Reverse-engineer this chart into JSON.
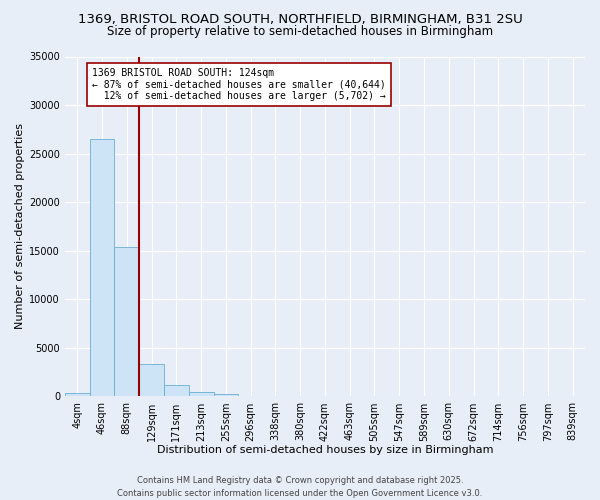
{
  "title_line1": "1369, BRISTOL ROAD SOUTH, NORTHFIELD, BIRMINGHAM, B31 2SU",
  "title_line2": "Size of property relative to semi-detached houses in Birmingham",
  "xlabel": "Distribution of semi-detached houses by size in Birmingham",
  "ylabel": "Number of semi-detached properties",
  "categories": [
    "4sqm",
    "46sqm",
    "88sqm",
    "129sqm",
    "171sqm",
    "213sqm",
    "255sqm",
    "296sqm",
    "338sqm",
    "380sqm",
    "422sqm",
    "463sqm",
    "505sqm",
    "547sqm",
    "589sqm",
    "630sqm",
    "672sqm",
    "714sqm",
    "756sqm",
    "797sqm",
    "839sqm"
  ],
  "values": [
    400,
    26500,
    15400,
    3300,
    1200,
    450,
    250,
    100,
    0,
    0,
    0,
    0,
    0,
    0,
    0,
    0,
    0,
    0,
    0,
    0,
    0
  ],
  "bar_color": "#cce4f5",
  "bar_edge_color": "#6baed6",
  "vline_pos": 2.5,
  "vline_color": "#990000",
  "annotation_text": "1369 BRISTOL ROAD SOUTH: 124sqm\n← 87% of semi-detached houses are smaller (40,644)\n  12% of semi-detached houses are larger (5,702) →",
  "annotation_box_facecolor": "#ffffff",
  "annotation_box_edgecolor": "#990000",
  "ylim": [
    0,
    35000
  ],
  "yticks": [
    0,
    5000,
    10000,
    15000,
    20000,
    25000,
    30000,
    35000
  ],
  "background_color": "#e8eef8",
  "grid_color": "#ffffff",
  "footer_line1": "Contains HM Land Registry data © Crown copyright and database right 2025.",
  "footer_line2": "Contains public sector information licensed under the Open Government Licence v3.0.",
  "title_fontsize": 9.5,
  "subtitle_fontsize": 8.5,
  "axis_label_fontsize": 8,
  "tick_fontsize": 7,
  "annotation_fontsize": 7,
  "footer_fontsize": 6
}
